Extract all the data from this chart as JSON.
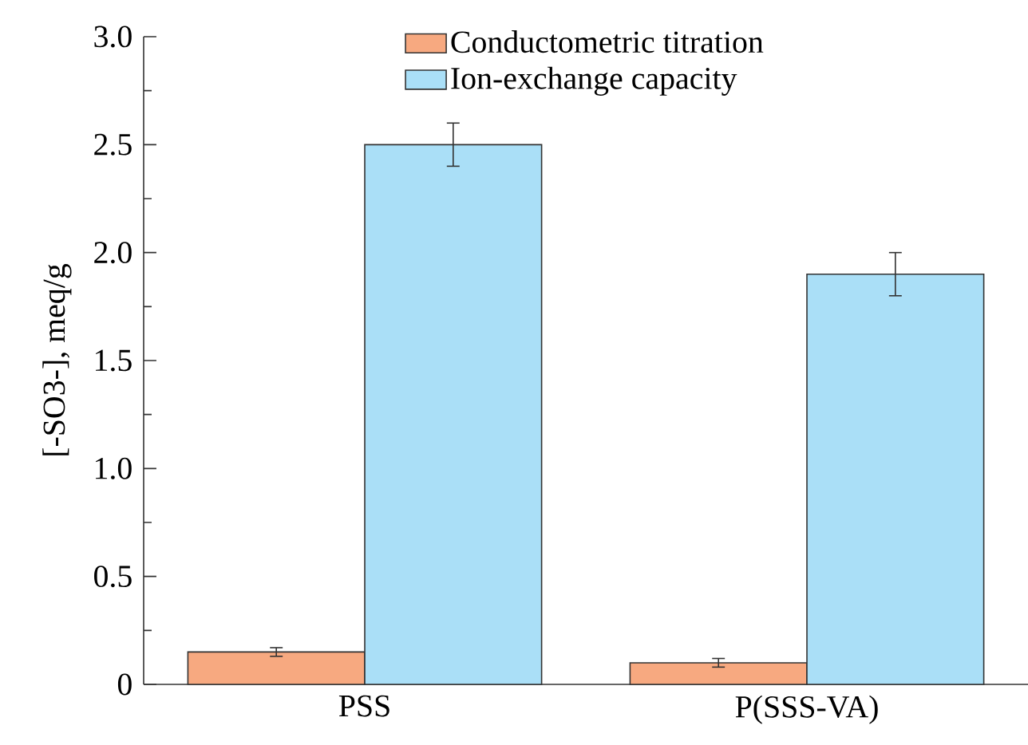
{
  "chart_data": {
    "type": "bar",
    "ylabel": "[-SO3-], meq/g",
    "categories": [
      "PSS",
      "P(SSS-VA)"
    ],
    "series": [
      {
        "name": "Conductometric titration",
        "color": "#f7a980",
        "values": [
          0.15,
          0.1
        ],
        "errors": [
          0.02,
          0.02
        ]
      },
      {
        "name": "Ion-exchange capacity",
        "color": "#aadff7",
        "values": [
          2.5,
          1.9
        ],
        "errors": [
          0.1,
          0.1
        ]
      }
    ],
    "ylim": [
      0,
      3
    ],
    "yticks": [
      0,
      0.5,
      {
        "value": 1,
        "label": "1.0"
      },
      1.5,
      {
        "value": 2,
        "label": "2.0"
      },
      2.5,
      {
        "value": 3,
        "label": "3.0"
      }
    ],
    "legend": "top",
    "grid": false
  }
}
